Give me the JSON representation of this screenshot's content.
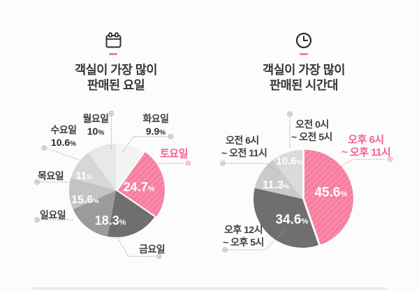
{
  "page": {
    "background": "#fcfcfc",
    "divider_color": "#e3e3e3"
  },
  "colors": {
    "accent": "#f77d9f",
    "accent_stripe": "#f992b0",
    "accent_text": "#f7618c",
    "dark_gray": "#6f6f6f",
    "leader_gray": "#9e9e9e",
    "title_text": "#373737",
    "label_text": "#3e3e3e",
    "inside_text": "#ffffff"
  },
  "chart_data": [
    {
      "type": "pie",
      "title_lines": [
        "객실이 가장 많이",
        "판매된 요일"
      ],
      "icon": "calendar-icon",
      "unit": "%",
      "start_angle_deg": 0,
      "clockwise": true,
      "legend_position": "outside-callouts",
      "slices": [
        {
          "name": "tuesday",
          "label": "화요일",
          "value": 9.9,
          "display": "9.9",
          "color": "#f3f3f3"
        },
        {
          "name": "saturday",
          "label": "토요일",
          "value": 24.7,
          "display": "24.7",
          "color": "#f77d9f",
          "hatch": true,
          "highlight": true
        },
        {
          "name": "friday",
          "label": "금요일",
          "value": 18.3,
          "display": "18.3",
          "color": "#6f6f6f"
        },
        {
          "name": "sunday",
          "label": "일요일",
          "value": 15.6,
          "display": "15.6",
          "color": "#9b9b9b"
        },
        {
          "name": "thursday",
          "label": "목요일",
          "value": 11,
          "display": "11",
          "color": "#c3c3c3"
        },
        {
          "name": "wednesday",
          "label": "수요일",
          "value": 10.6,
          "display": "10.6",
          "color": "#d7d7d7"
        },
        {
          "name": "monday",
          "label": "월요일",
          "value": 10,
          "display": "10",
          "color": "#e8e8e8"
        }
      ]
    },
    {
      "type": "pie",
      "title_lines": [
        "객실이 가장 많이",
        "판매된 시간대"
      ],
      "icon": "clock-icon",
      "unit": "%",
      "start_angle_deg": 0,
      "clockwise": true,
      "legend_position": "outside-callouts",
      "slices": [
        {
          "name": "evening-6pm-11pm",
          "label_lines": [
            "오후 6시",
            "~ 오후 11시"
          ],
          "value": 45.6,
          "display": "45.6",
          "color": "#f77d9f",
          "hatch": true,
          "highlight": true
        },
        {
          "name": "afternoon-12pm-5pm",
          "label_lines": [
            "오후 12시",
            "~ 오후 5시"
          ],
          "value": 34.6,
          "display": "34.6",
          "color": "#6f6f6f"
        },
        {
          "name": "morning-6am-11am",
          "label_lines": [
            "오전 6시",
            "~ 오전 11시"
          ],
          "value": 11.3,
          "display": "11.3",
          "color": "#cbcbcb"
        },
        {
          "name": "night-0am-5am",
          "label_lines": [
            "오전 0시",
            "~ 오전 5시"
          ],
          "value": 10.6,
          "display": "10.6",
          "color": "#dadada"
        }
      ]
    }
  ]
}
